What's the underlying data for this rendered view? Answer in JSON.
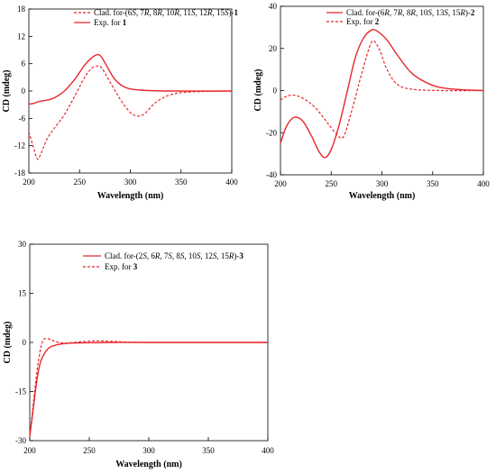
{
  "figure": {
    "panel_a": {
      "xlabel": "Wavelength (nm)",
      "ylabel": "CD (mdeg)",
      "x_ticks": [
        "200",
        "250",
        "300",
        "350",
        "400"
      ],
      "y_ticks": [
        "18",
        "12",
        "6",
        "0",
        "-6",
        "-12",
        "-18"
      ]
    },
    "panel_b": {
      "xlabel": "Wavelength (nm)",
      "ylabel": "CD (mdeg)",
      "x_ticks": [
        "200",
        "250",
        "300",
        "350",
        "400"
      ],
      "y_ticks": [
        "40",
        "20",
        "0",
        "-20",
        "-40"
      ]
    },
    "panel_c": {
      "xlabel": "Wavelength (nm)",
      "ylabel": "CD (mdeg)",
      "x_ticks": [
        "200",
        "250",
        "300",
        "350",
        "400"
      ],
      "y_ticks": [
        "30",
        "15",
        "0",
        "-15",
        "-30"
      ]
    }
  },
  "chart_data": [
    {
      "type": "line",
      "xlabel": "Wavelength (nm)",
      "ylabel": "CD (mdeg)",
      "xlim": [
        200,
        400
      ],
      "ylim": [
        -18,
        18
      ],
      "grid": false,
      "legend": "top",
      "series": [
        {
          "name": "Clad. for-(6S, 7R, 8R, 10R, 11S, 12R, 15S)-1",
          "style": "dashed",
          "color": "#e8262b",
          "x": [
            200,
            204,
            208,
            210,
            213,
            218,
            225,
            235,
            245,
            255,
            262,
            268,
            272,
            280,
            290,
            300,
            308,
            315,
            325,
            340,
            360,
            400
          ],
          "y": [
            -9,
            -12,
            -14.8,
            -14.6,
            -13.2,
            -10.5,
            -8.2,
            -5.2,
            -1.2,
            3,
            5,
            5.5,
            5,
            2,
            -1.8,
            -4.7,
            -5.5,
            -4.8,
            -2.5,
            -0.8,
            -0.2,
            0
          ]
        },
        {
          "name": "Exp. for 1",
          "style": "solid",
          "color": "#e8262b",
          "x": [
            200,
            205,
            210,
            218,
            225,
            235,
            245,
            255,
            262,
            268,
            272,
            278,
            285,
            295,
            310,
            340,
            400
          ],
          "y": [
            -2.9,
            -2.7,
            -2.3,
            -2,
            -1.5,
            0,
            2.5,
            5.7,
            7.3,
            8,
            7.3,
            5,
            2.5,
            0.8,
            0.2,
            0,
            0
          ]
        }
      ]
    },
    {
      "type": "line",
      "xlabel": "Wavelength (nm)",
      "ylabel": "CD (mdeg)",
      "xlim": [
        200,
        400
      ],
      "ylim": [
        -40,
        40
      ],
      "grid": false,
      "legend": "top",
      "series": [
        {
          "name": "Clad. for-(6R, 7R, 8R, 10S, 13S, 15R)-2",
          "style": "solid",
          "color": "#e8262b",
          "x": [
            200,
            205,
            210,
            215,
            222,
            230,
            238,
            244,
            250,
            258,
            266,
            274,
            282,
            290,
            296,
            305,
            315,
            330,
            350,
            370,
            400
          ],
          "y": [
            -25,
            -18,
            -14,
            -12.6,
            -14.5,
            -21,
            -29,
            -31.8,
            -28,
            -16,
            0,
            16,
            25,
            28.8,
            28,
            24,
            17,
            8,
            2.5,
            0.7,
            0
          ]
        },
        {
          "name": "Exp. for 2",
          "style": "dashed",
          "color": "#e8262b",
          "x": [
            200,
            207,
            215,
            225,
            235,
            245,
            255,
            262,
            270,
            280,
            288,
            292,
            298,
            305,
            315,
            330,
            360,
            400
          ],
          "y": [
            -4.5,
            -2.5,
            -2.3,
            -4.5,
            -8.5,
            -14.5,
            -20.5,
            -22,
            -10,
            8,
            21,
            23.5,
            19,
            10,
            3,
            0.6,
            0,
            0
          ]
        }
      ]
    },
    {
      "type": "line",
      "xlabel": "Wavelength (nm)",
      "ylabel": "CD (mdeg)",
      "xlim": [
        200,
        400
      ],
      "ylim": [
        -30,
        30
      ],
      "grid": false,
      "legend": "top",
      "series": [
        {
          "name": "Clad. for-(2S, 6R, 7S, 8S, 10S, 12S, 15R)-3",
          "style": "solid",
          "color": "#e8262b",
          "x": [
            200,
            202,
            204,
            206,
            208,
            210,
            213,
            216,
            220,
            226,
            235,
            250,
            270,
            300,
            400
          ],
          "y": [
            -28.5,
            -23,
            -17,
            -11.5,
            -7.5,
            -5,
            -3,
            -1.7,
            -1,
            -0.5,
            -0.2,
            -0.1,
            0,
            0,
            0
          ]
        },
        {
          "name": "Exp. for 3",
          "style": "dashed",
          "color": "#e8262b",
          "x": [
            200,
            202,
            205,
            208,
            211,
            214,
            218,
            223,
            230,
            240,
            250,
            258,
            270,
            300,
            400
          ],
          "y": [
            -29,
            -22,
            -12,
            -4,
            0.5,
            1.2,
            0.8,
            0.1,
            -0.2,
            0.1,
            0.4,
            0.5,
            0.3,
            0,
            0
          ]
        }
      ]
    }
  ]
}
